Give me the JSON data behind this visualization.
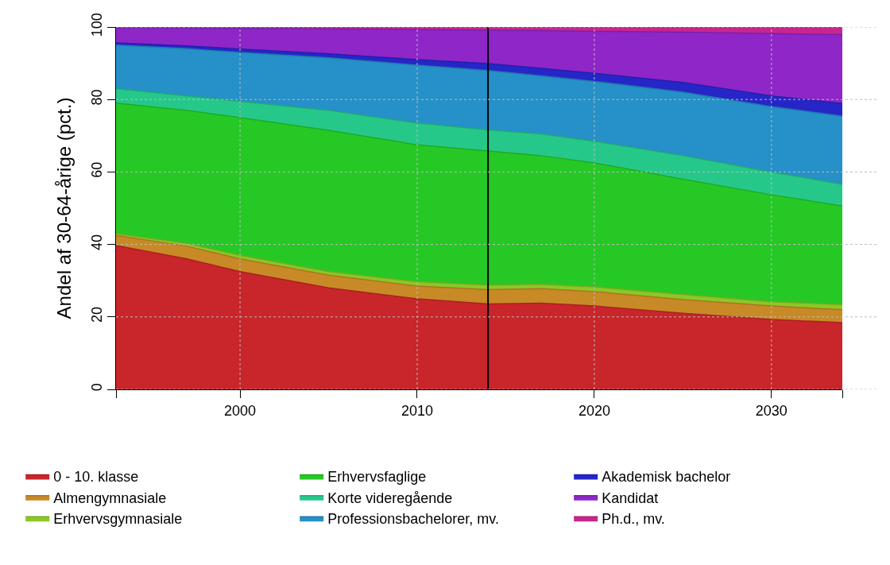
{
  "chart_data": {
    "type": "area",
    "stacked": true,
    "ylabel": "Andel af 30-64-årige (pct.)",
    "x": [
      1993,
      1997,
      2000,
      2005,
      2010,
      2014,
      2017,
      2020,
      2025,
      2030,
      2034
    ],
    "xlim": [
      1993,
      2034
    ],
    "xticks": [
      {
        "value": 1993,
        "label": null
      },
      2000,
      2010,
      2020,
      2030,
      {
        "value": 2034,
        "label": null
      }
    ],
    "ylim": [
      0,
      100
    ],
    "yticks": [
      0,
      20,
      40,
      60,
      80,
      100
    ],
    "grid": true,
    "legend": "bottom",
    "ref_lines": [
      {
        "axis": "x",
        "value": 2014,
        "color": "#000000"
      }
    ],
    "series": [
      {
        "name": "0 - 10. klasse",
        "color": "#c8262a",
        "values": [
          39.7,
          36,
          32.5,
          28,
          25,
          23.6,
          23.8,
          23,
          21,
          19.3,
          18.4
        ]
      },
      {
        "name": "Almengymnasiale",
        "color": "#c88a26",
        "values": [
          2.8,
          3.5,
          3.5,
          3.5,
          3.5,
          3.9,
          4,
          4,
          3.8,
          3.7,
          3.6
        ]
      },
      {
        "name": "Erhvervsgymnasiale",
        "color": "#8ac826",
        "values": [
          0.5,
          0.8,
          1,
          1,
          1.2,
          1.3,
          1.2,
          1.3,
          1.4,
          1.2,
          1.4
        ]
      },
      {
        "name": "Erhvervsfaglige",
        "color": "#26c826",
        "values": [
          36,
          36.7,
          38,
          39,
          37.8,
          37,
          35.5,
          34.2,
          31.8,
          29.5,
          27.2
        ]
      },
      {
        "name": "Korte videregående",
        "color": "#26c88a",
        "values": [
          4,
          4,
          4.5,
          5.5,
          6,
          5.8,
          6,
          6,
          6.5,
          6.3,
          6
        ]
      },
      {
        "name": "Professionsbachelorer, mv.",
        "color": "#2690c8",
        "values": [
          12,
          13,
          13.5,
          14.5,
          16,
          16.4,
          16,
          16.5,
          17.5,
          18,
          18.8
        ]
      },
      {
        "name": "Akademisk bachelor",
        "color": "#2626c8",
        "values": [
          0.6,
          0.8,
          0.9,
          1.1,
          1.5,
          1.9,
          2.1,
          2.2,
          2.7,
          3,
          3.5
        ]
      },
      {
        "name": "Kandidat",
        "color": "#8e26c8",
        "values": [
          4.2,
          4.9,
          5.7,
          6.9,
          8.3,
          9.2,
          10.4,
          11.6,
          13.9,
          17.2,
          19
        ]
      },
      {
        "name": "Ph.d., mv.",
        "color": "#c8268e",
        "values": [
          0.2,
          0.3,
          0.4,
          0.5,
          0.7,
          0.9,
          1,
          1.2,
          1.4,
          1.8,
          2.1
        ]
      }
    ]
  }
}
